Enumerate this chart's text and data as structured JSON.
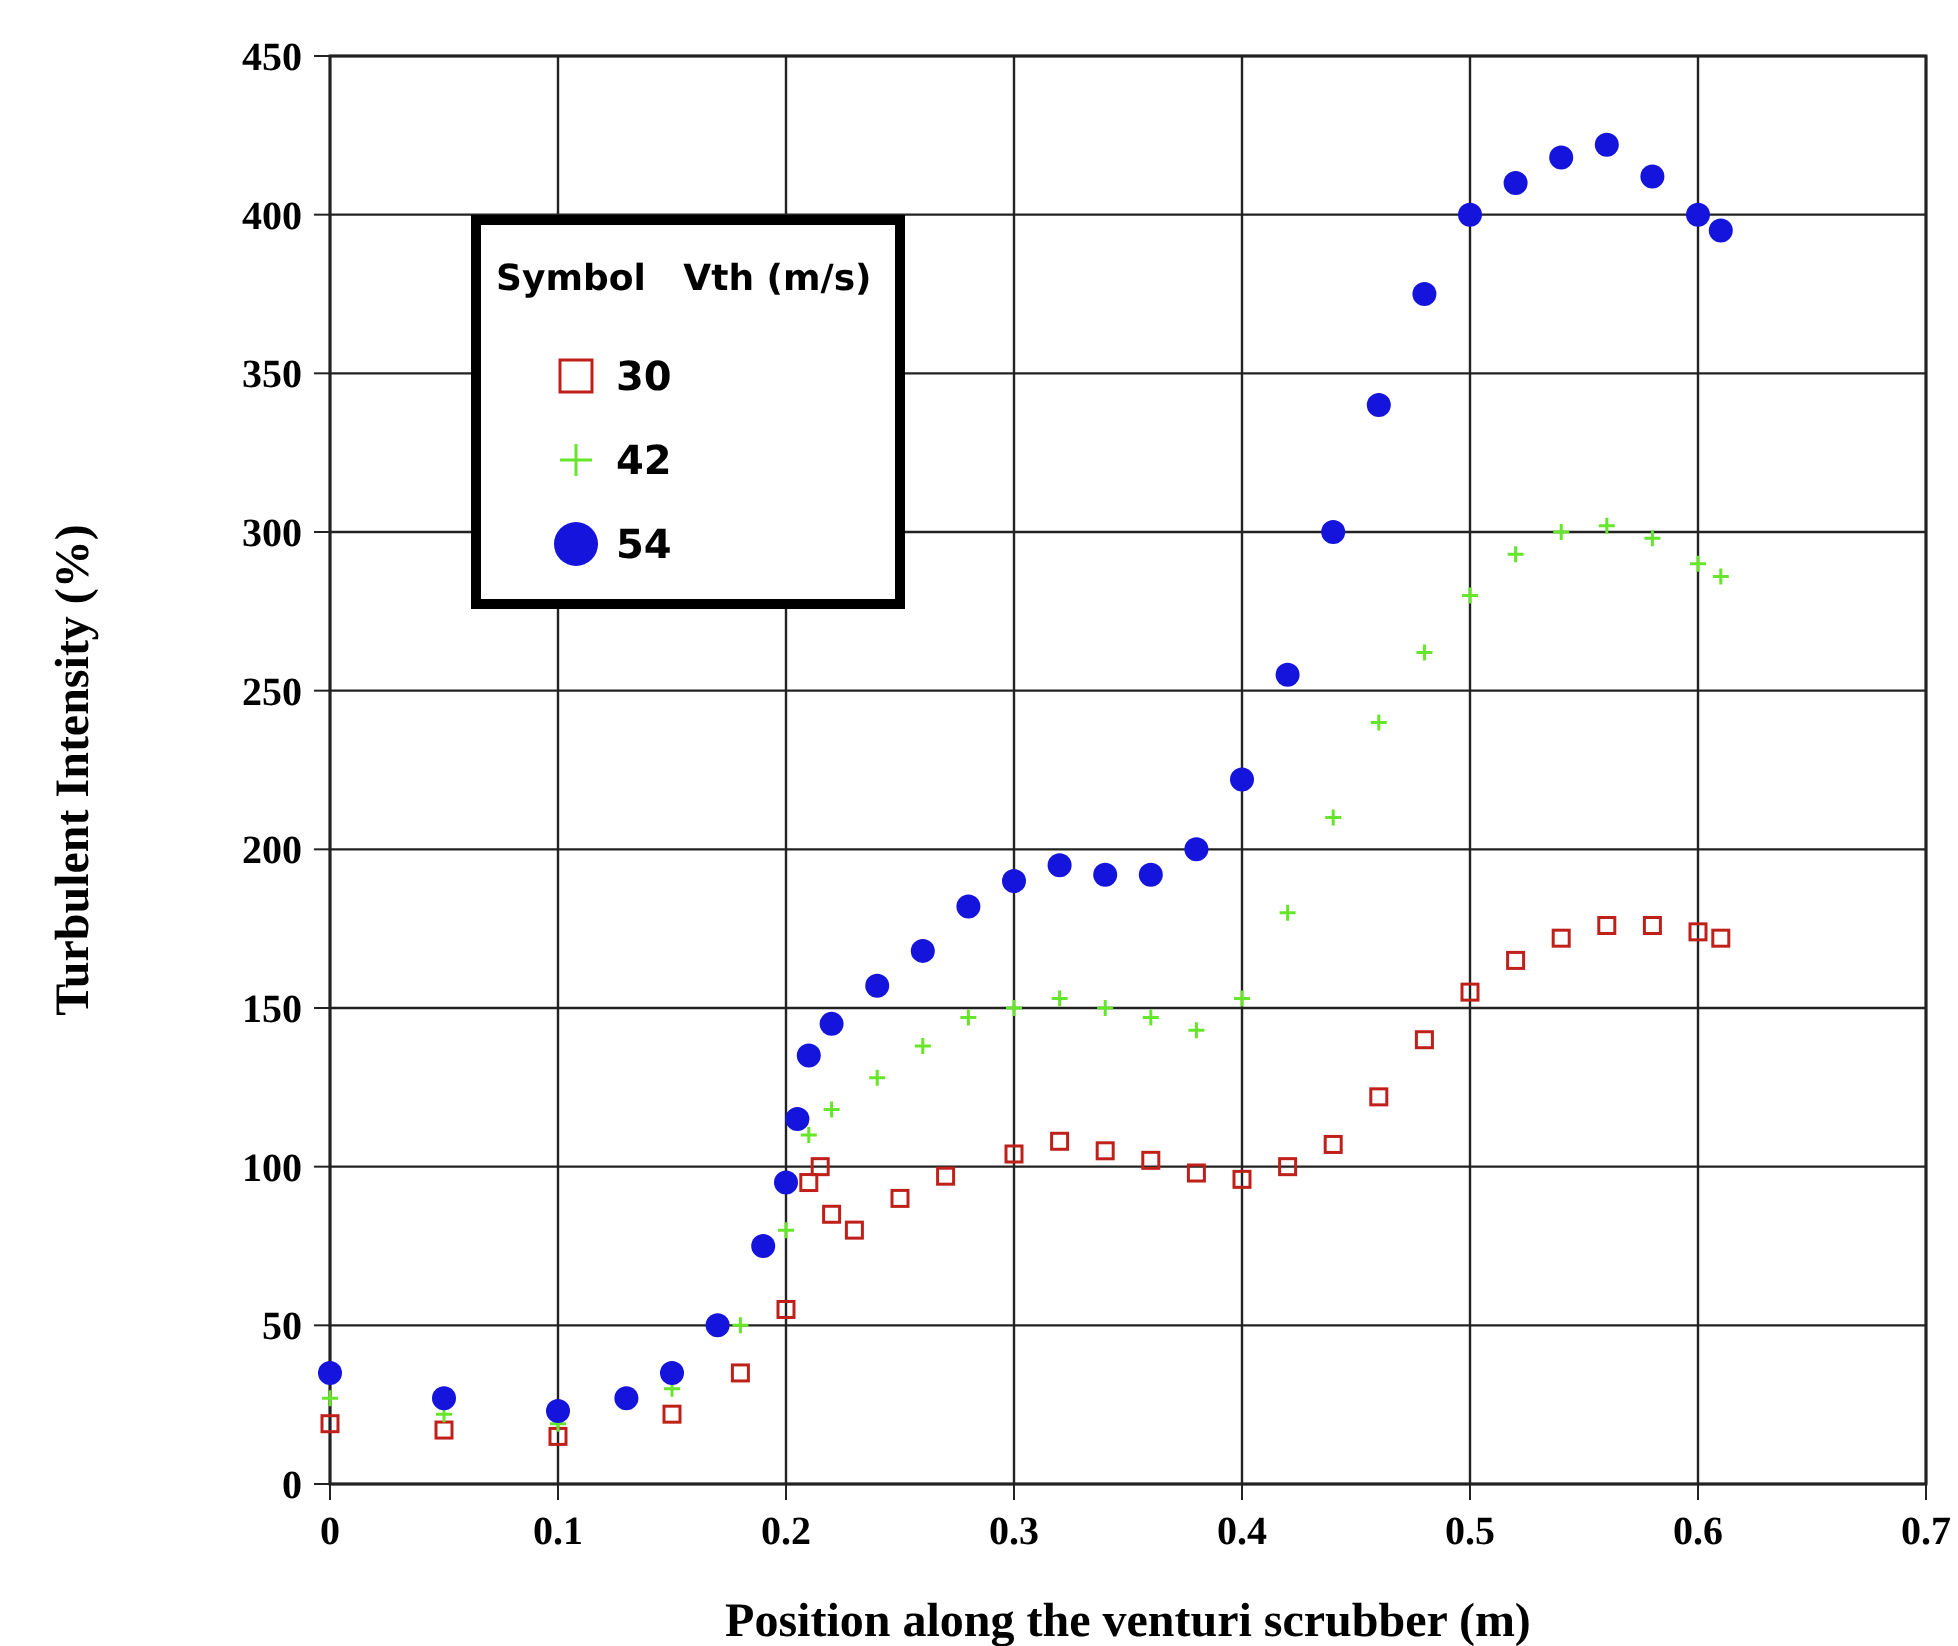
{
  "chart_data": {
    "type": "scatter",
    "xlabel": "Position along the venturi scrubber (m)",
    "ylabel": "Turbulent Intensity (%)",
    "legend_title": "Symbol   Vth (m/s)",
    "legend": "top left",
    "grid": true,
    "xlim": [
      0,
      0.7
    ],
    "xticks": [
      0,
      0.1,
      0.2,
      0.3,
      0.4,
      0.5,
      0.6,
      0.7
    ],
    "ylim": [
      0,
      450
    ],
    "yticks": [
      0,
      50,
      100,
      150,
      200,
      250,
      300,
      350,
      400,
      450
    ],
    "series": [
      {
        "name": "30",
        "color": "#c0201a",
        "marker": "square",
        "x": [
          0,
          0.05,
          0.1,
          0.15,
          0.18,
          0.2,
          0.21,
          0.215,
          0.22,
          0.23,
          0.25,
          0.27,
          0.3,
          0.32,
          0.34,
          0.36,
          0.38,
          0.4,
          0.42,
          0.44,
          0.46,
          0.48,
          0.5,
          0.52,
          0.54,
          0.56,
          0.58,
          0.6,
          0.61
        ],
        "values": [
          19,
          17,
          15,
          22,
          35,
          55,
          95,
          100,
          85,
          80,
          90,
          97,
          104,
          108,
          105,
          102,
          98,
          96,
          100,
          107,
          122,
          140,
          155,
          165,
          172,
          176,
          176,
          174,
          172
        ]
      },
      {
        "name": "42",
        "color": "#66e62a",
        "marker": "cross",
        "x": [
          0,
          0.05,
          0.1,
          0.15,
          0.18,
          0.2,
          0.21,
          0.22,
          0.24,
          0.26,
          0.28,
          0.3,
          0.32,
          0.34,
          0.36,
          0.38,
          0.4,
          0.42,
          0.44,
          0.46,
          0.48,
          0.5,
          0.52,
          0.54,
          0.56,
          0.58,
          0.6,
          0.61
        ],
        "values": [
          27,
          22,
          19,
          30,
          50,
          80,
          110,
          118,
          128,
          138,
          147,
          150,
          153,
          150,
          147,
          143,
          153,
          180,
          210,
          240,
          262,
          280,
          293,
          300,
          302,
          298,
          290,
          286
        ]
      },
      {
        "name": "54",
        "color": "#1414dc",
        "marker": "circle",
        "x": [
          0,
          0.05,
          0.1,
          0.13,
          0.15,
          0.17,
          0.19,
          0.2,
          0.205,
          0.21,
          0.22,
          0.24,
          0.26,
          0.28,
          0.3,
          0.32,
          0.34,
          0.36,
          0.38,
          0.4,
          0.42,
          0.44,
          0.46,
          0.48,
          0.5,
          0.52,
          0.54,
          0.56,
          0.58,
          0.6,
          0.61
        ],
        "values": [
          35,
          27,
          23,
          27,
          35,
          50,
          75,
          95,
          115,
          135,
          145,
          157,
          168,
          182,
          190,
          195,
          192,
          192,
          200,
          222,
          255,
          300,
          340,
          375,
          400,
          410,
          418,
          422,
          412,
          400,
          395
        ]
      }
    ]
  }
}
